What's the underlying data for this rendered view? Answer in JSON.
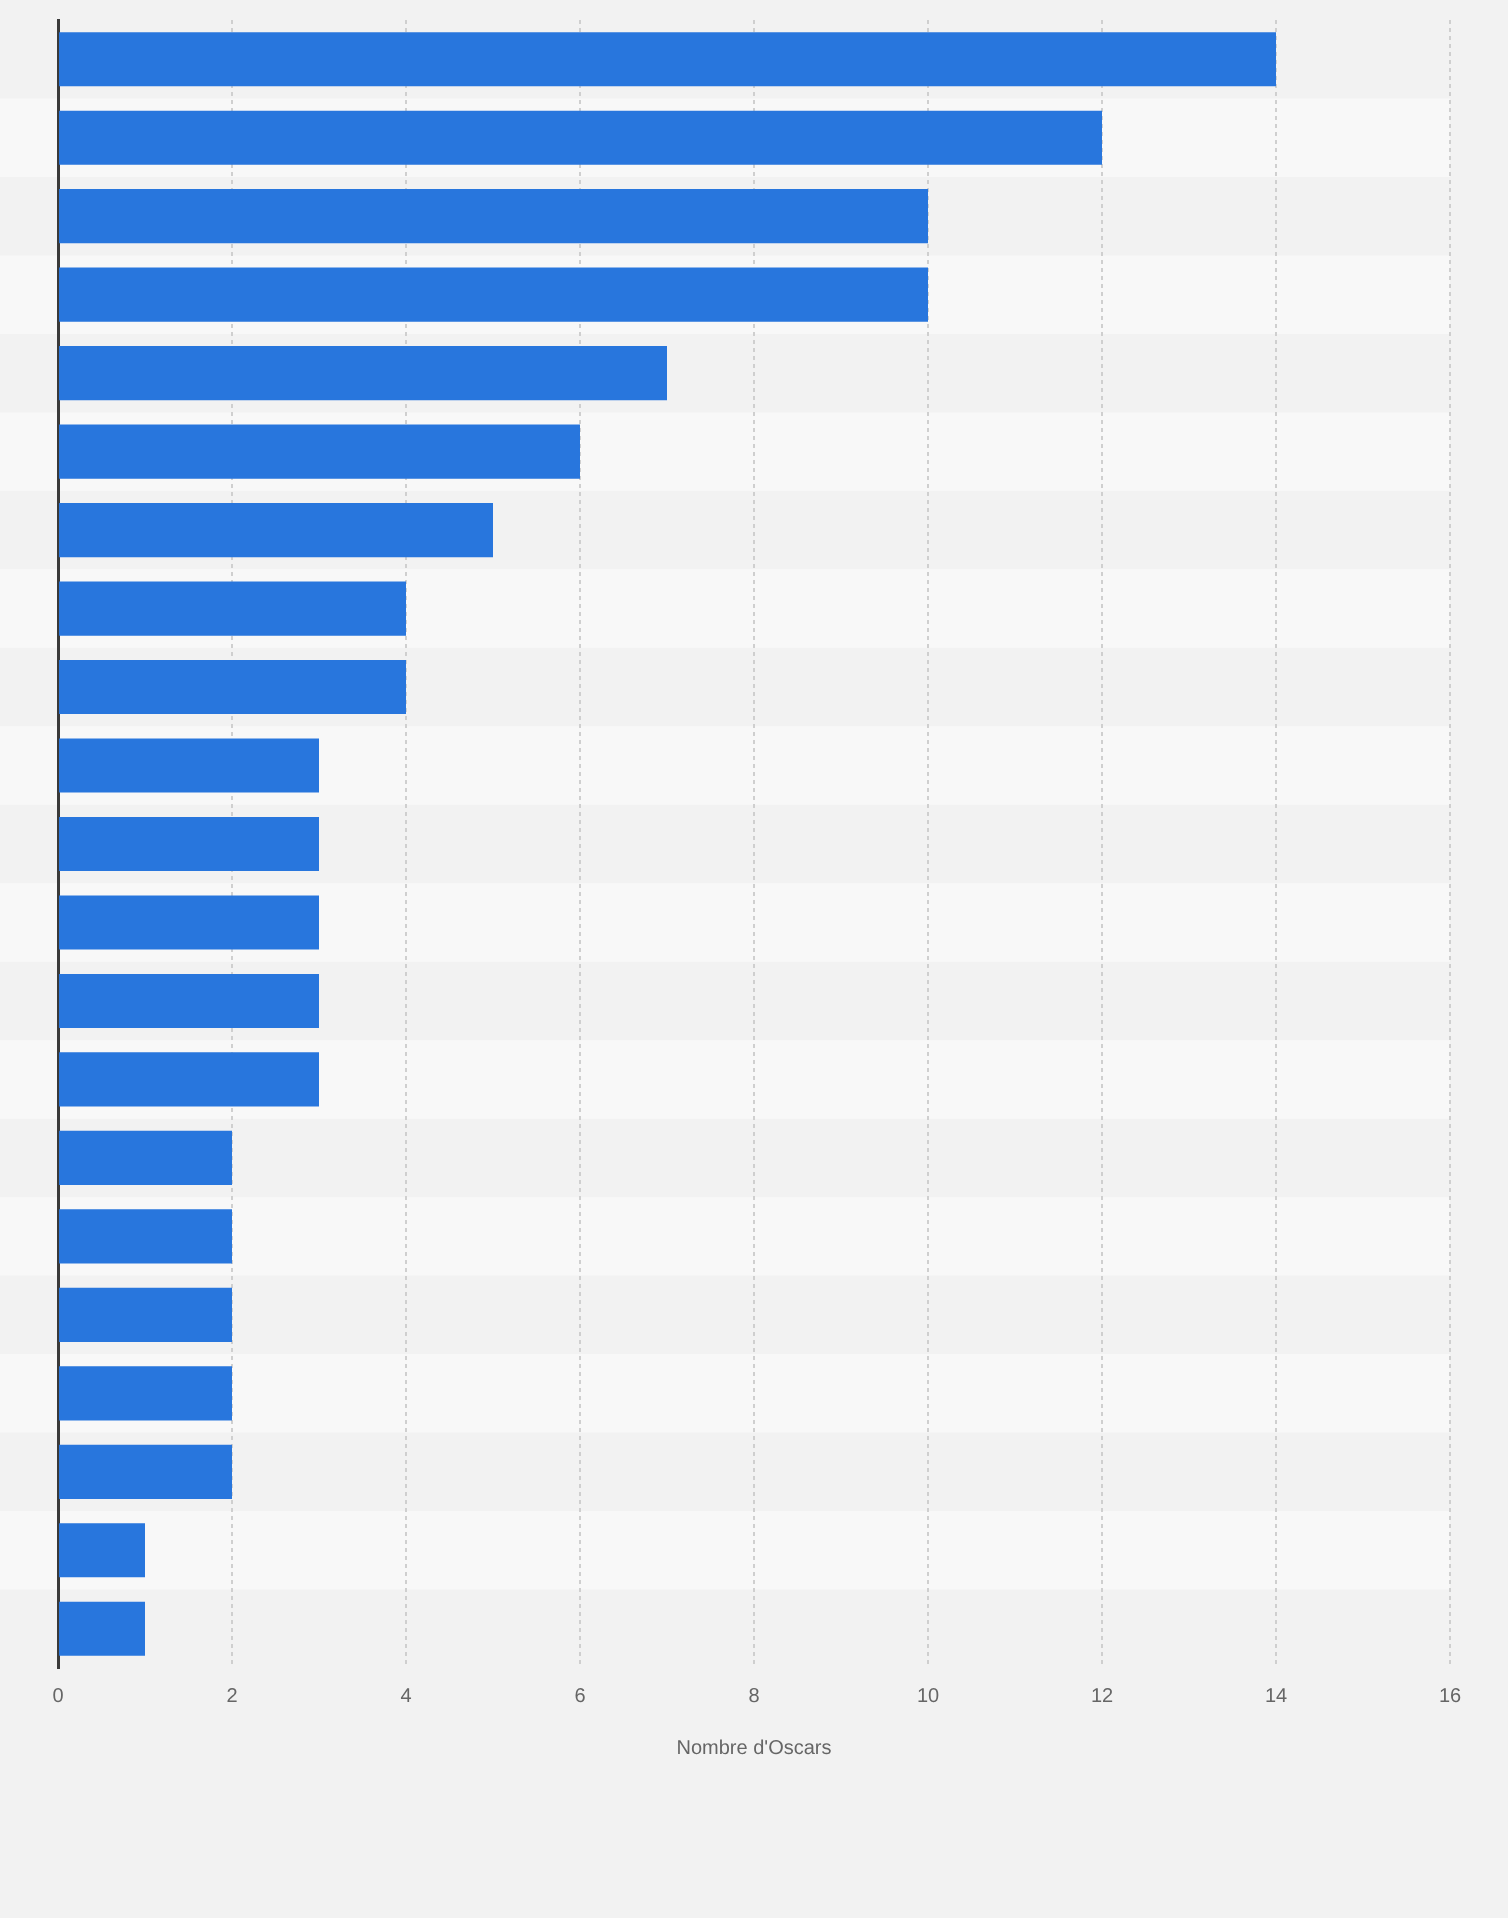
{
  "chart_data": {
    "type": "bar",
    "orientation": "horizontal",
    "xlabel": "Nombre d'Oscars",
    "categories": [
      null,
      null,
      null,
      null,
      null,
      null,
      null,
      null,
      null,
      null,
      null,
      null,
      null,
      null,
      null,
      null,
      null,
      null,
      null,
      null,
      null
    ],
    "values": [
      14,
      12,
      10,
      10,
      7,
      6,
      5,
      4,
      4,
      3,
      3,
      3,
      3,
      3,
      2,
      2,
      2,
      2,
      2,
      1,
      1
    ],
    "color": "#2876dd",
    "xlim": [
      0,
      16
    ],
    "xticks": [
      0,
      2,
      4,
      6,
      8,
      10,
      12,
      14,
      16
    ],
    "grid": "x"
  }
}
